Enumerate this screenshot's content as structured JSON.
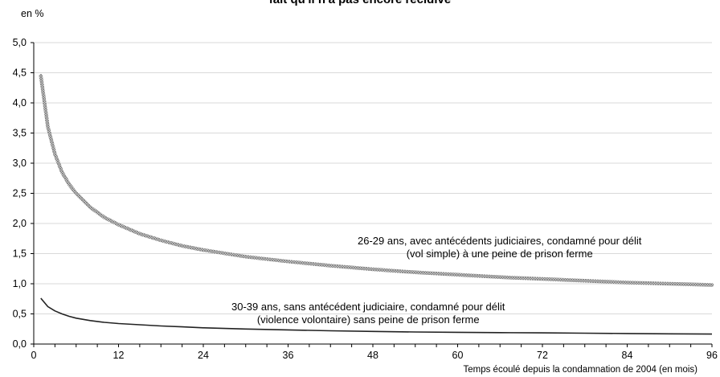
{
  "chart_data": {
    "type": "line",
    "title": "fait qu'il n'a pas encore récidivé",
    "ylabel": "en %",
    "xlabel": "Temps écoulé depuis la condamnation de 2004 (en mois)",
    "xlim": [
      0,
      96
    ],
    "ylim": [
      0,
      5
    ],
    "x_ticks": [
      0,
      12,
      24,
      36,
      48,
      60,
      72,
      84,
      96
    ],
    "y_ticks": [
      "0,0",
      "0,5",
      "1,0",
      "1,5",
      "2,0",
      "2,5",
      "3,0",
      "3,5",
      "4,0",
      "4,5",
      "5,0"
    ],
    "grid": "horizontal",
    "series": [
      {
        "name": "26-29 ans, avec antécédents judiciaires, condamné pour délit (vol simple) à une peine de prison ferme",
        "label_lines": [
          "26-29 ans, avec antécédents judiciaires, condamné pour délit",
          "(vol simple) à une peine de prison ferme"
        ],
        "color": "#9a9a9a",
        "style": "hatched",
        "x": [
          1,
          2,
          3,
          4,
          5,
          6,
          8,
          10,
          12,
          15,
          18,
          21,
          24,
          30,
          36,
          42,
          48,
          54,
          60,
          66,
          72,
          78,
          84,
          90,
          96
        ],
        "y": [
          4.45,
          3.6,
          3.15,
          2.85,
          2.65,
          2.5,
          2.27,
          2.1,
          1.98,
          1.83,
          1.72,
          1.63,
          1.56,
          1.45,
          1.37,
          1.3,
          1.24,
          1.19,
          1.15,
          1.11,
          1.08,
          1.05,
          1.02,
          1.0,
          0.98
        ]
      },
      {
        "name": "30-39 ans, sans antécédent judiciaire, condamné pour délit (violence volontaire) sans peine de prison ferme",
        "label_lines": [
          "30-39 ans, sans antécédent judiciaire, condamné pour délit",
          "(violence volontaire) sans peine de prison ferme"
        ],
        "color": "#222222",
        "style": "solid",
        "x": [
          1,
          2,
          3,
          4,
          5,
          6,
          8,
          10,
          12,
          15,
          18,
          21,
          24,
          30,
          36,
          42,
          48,
          54,
          60,
          66,
          72,
          78,
          84,
          90,
          96
        ],
        "y": [
          0.76,
          0.62,
          0.55,
          0.5,
          0.46,
          0.43,
          0.39,
          0.36,
          0.34,
          0.32,
          0.3,
          0.285,
          0.27,
          0.25,
          0.235,
          0.22,
          0.21,
          0.2,
          0.195,
          0.19,
          0.185,
          0.18,
          0.175,
          0.17,
          0.165
        ]
      }
    ]
  }
}
